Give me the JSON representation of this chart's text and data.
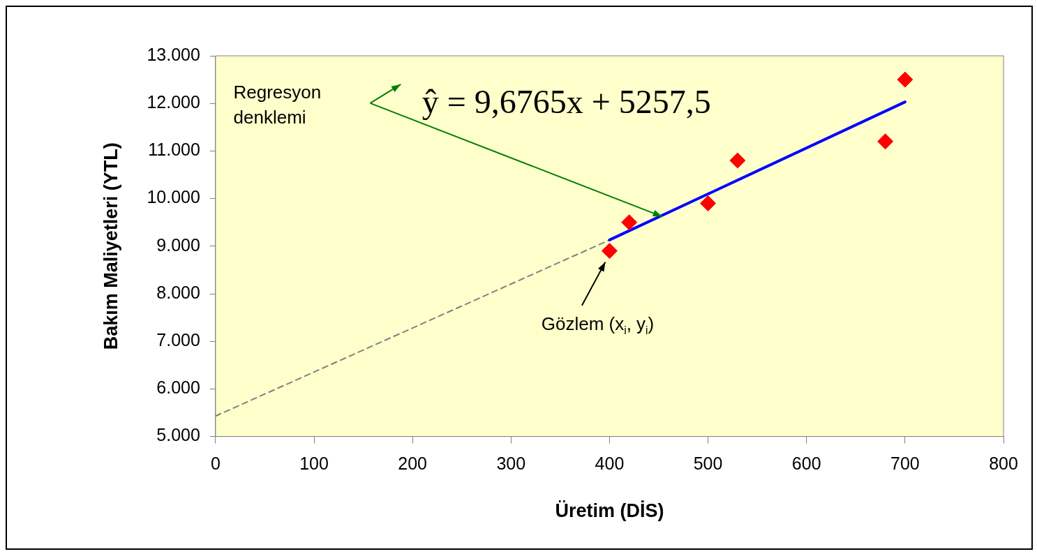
{
  "chart_data": {
    "type": "scatter",
    "xlabel": "Üretim (DİS)",
    "ylabel": "Bakım Maliyetleri (YTL)",
    "series": [
      {
        "color": "#ff0000",
        "marker": "diamond",
        "x": [
          400,
          420,
          500,
          530,
          680,
          700
        ],
        "values": [
          8900,
          9500,
          9900,
          10800,
          11200,
          12500
        ]
      },
      {
        "type": "line",
        "color": "#0000ff",
        "marker": "none",
        "line_style": "solid",
        "x": [
          400,
          700
        ],
        "values": [
          9130,
          12030
        ]
      },
      {
        "type": "line",
        "color": "#808080",
        "marker": "none",
        "line_style": "dashed",
        "x": [
          0,
          400
        ],
        "values": [
          5430,
          9130
        ]
      }
    ],
    "xlim": [
      0,
      800
    ],
    "xticks": [
      0,
      100,
      200,
      300,
      400,
      500,
      600,
      700,
      800
    ],
    "ylim": [
      5000,
      13000
    ],
    "yticks": [
      {
        "value": 5000,
        "label": "5.000"
      },
      {
        "value": 6000,
        "label": "6.000"
      },
      {
        "value": 7000,
        "label": "7.000"
      },
      {
        "value": 8000,
        "label": "8.000"
      },
      {
        "value": 9000,
        "label": "9.000"
      },
      {
        "value": 10000,
        "label": "10.000"
      },
      {
        "value": 11000,
        "label": "11.000"
      },
      {
        "value": 12000,
        "label": "12.000"
      },
      {
        "value": 13000,
        "label": "13.000"
      }
    ],
    "grid": false,
    "legend": false,
    "annotations": [
      "Regresyon denklemi",
      "ŷ = 9,6765x + 5257,5",
      "Gözlem (x$_{i}$, y$_{i}$)"
    ]
  }
}
